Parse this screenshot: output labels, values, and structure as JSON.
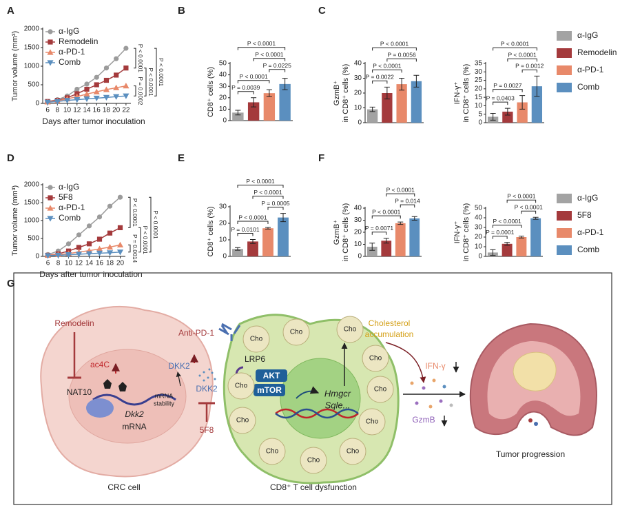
{
  "panel_labels": [
    "A",
    "B",
    "C",
    "D",
    "E",
    "F",
    "G"
  ],
  "legends": [
    {
      "items": [
        {
          "name": "α-IgG",
          "color": "#a3a3a3"
        },
        {
          "name": "Remodelin",
          "color": "#a43a3c"
        },
        {
          "name": "α-PD-1",
          "color": "#e8896a"
        },
        {
          "name": "Comb",
          "color": "#5b8fbf"
        }
      ]
    },
    {
      "items": [
        {
          "name": "α-IgG",
          "color": "#a3a3a3"
        },
        {
          "name": "5F8",
          "color": "#a43a3c"
        },
        {
          "name": "α-PD-1",
          "color": "#e8896a"
        },
        {
          "name": "Comb",
          "color": "#5b8fbf"
        }
      ]
    }
  ],
  "chart_data": [
    {
      "type": "line",
      "ylabel": "Tumor volume (mm³)",
      "xlabel": "Days after tumor inoculation",
      "x": [
        6,
        8,
        10,
        12,
        14,
        16,
        18,
        20,
        22
      ],
      "xlim": [
        5,
        23
      ],
      "xticks": [
        6,
        8,
        10,
        12,
        14,
        16,
        18,
        20,
        22
      ],
      "ylim": [
        0,
        2000
      ],
      "yticks": [
        0,
        500,
        1000,
        1500,
        2000
      ],
      "series": [
        {
          "name": "α-IgG",
          "color": "#9b9b9b",
          "marker": "circle",
          "values": [
            50,
            100,
            200,
            380,
            520,
            700,
            950,
            1200,
            1480
          ]
        },
        {
          "name": "Remodelin",
          "color": "#a43a3c",
          "marker": "square",
          "values": [
            50,
            80,
            150,
            260,
            380,
            500,
            620,
            760,
            950
          ]
        },
        {
          "name": "α-PD-1",
          "color": "#e8896a",
          "marker": "triangle-up",
          "values": [
            40,
            70,
            120,
            180,
            250,
            310,
            370,
            420,
            470
          ]
        },
        {
          "name": "Comb",
          "color": "#5b8fbf",
          "marker": "triangle-down",
          "values": [
            30,
            50,
            80,
            100,
            120,
            140,
            160,
            180,
            200
          ]
        }
      ],
      "comparisons": [
        {
          "pair": [
            0,
            1
          ],
          "label": "P < 0.0001"
        },
        {
          "pair": [
            2,
            3
          ],
          "label": "P = 0.0002"
        },
        {
          "pair": [
            1,
            3
          ],
          "label": "P < 0.0001"
        },
        {
          "pair": [
            0,
            3
          ],
          "label": "P < 0.0001"
        }
      ]
    },
    {
      "type": "bar",
      "ylabel": [
        "CD8⁺ cells (%)"
      ],
      "categories": [
        null,
        null,
        null,
        null
      ],
      "colors": [
        "#a3a3a3",
        "#a43a3c",
        "#e8896a",
        "#5b8fbf"
      ],
      "values": [
        7,
        16,
        24,
        32
      ],
      "errors": [
        2,
        4,
        3,
        5
      ],
      "ylim": [
        0,
        50
      ],
      "yticks": [
        0,
        10,
        20,
        30,
        40,
        50
      ],
      "comparisons": [
        {
          "pair": [
            0,
            1
          ],
          "label": "P = 0.0039"
        },
        {
          "pair": [
            0,
            2
          ],
          "label": "P < 0.0001"
        },
        {
          "pair": [
            2,
            3
          ],
          "label": "P = 0.0225"
        },
        {
          "pair": [
            1,
            3
          ],
          "label": "P < 0.0001"
        },
        {
          "pair": [
            0,
            3
          ],
          "label": "P < 0.0001"
        }
      ]
    },
    {
      "type": "bar",
      "ylabel": [
        "GzmB⁺",
        "in CD8⁺ cells (%)"
      ],
      "categories": [
        null,
        null,
        null,
        null
      ],
      "colors": [
        "#a3a3a3",
        "#a43a3c",
        "#e8896a",
        "#5b8fbf"
      ],
      "values": [
        9,
        20,
        26,
        28
      ],
      "errors": [
        1.5,
        4,
        4,
        4
      ],
      "ylim": [
        0,
        40
      ],
      "yticks": [
        0,
        10,
        20,
        30,
        40
      ],
      "comparisons": [
        {
          "pair": [
            0,
            1
          ],
          "label": "P = 0.0022"
        },
        {
          "pair": [
            0,
            2
          ],
          "label": "P < 0.0001"
        },
        {
          "pair": [
            1,
            3
          ],
          "label": "P = 0.0056"
        },
        {
          "pair": [
            0,
            3
          ],
          "label": "P < 0.0001"
        }
      ]
    },
    {
      "type": "bar",
      "ylabel": [
        "IFN-γ⁺",
        "in CD8⁺ cells (%)"
      ],
      "categories": [
        null,
        null,
        null,
        null
      ],
      "colors": [
        "#a3a3a3",
        "#a43a3c",
        "#e8896a",
        "#5b8fbf"
      ],
      "values": [
        3.5,
        6.5,
        12,
        21.5
      ],
      "errors": [
        2,
        2,
        4,
        6
      ],
      "ylim": [
        0,
        35
      ],
      "yticks": [
        0,
        5,
        10,
        15,
        20,
        25,
        30,
        35
      ],
      "comparisons": [
        {
          "pair": [
            0,
            1
          ],
          "label": "P = 0.0403"
        },
        {
          "pair": [
            0,
            2
          ],
          "label": "P = 0.0027"
        },
        {
          "pair": [
            2,
            3
          ],
          "label": "P = 0.0012"
        },
        {
          "pair": [
            1,
            3
          ],
          "label": "P < 0.0001"
        },
        {
          "pair": [
            0,
            3
          ],
          "label": "P < 0.0001"
        }
      ]
    },
    {
      "type": "line",
      "ylabel": "Tumor volume (mm³)",
      "xlabel": "Days after tumor inoculation",
      "x": [
        6,
        8,
        10,
        12,
        14,
        16,
        18,
        20
      ],
      "xlim": [
        5,
        21
      ],
      "xticks": [
        6,
        8,
        10,
        12,
        14,
        16,
        18,
        20
      ],
      "ylim": [
        0,
        2000
      ],
      "yticks": [
        0,
        500,
        1000,
        1500,
        2000
      ],
      "series": [
        {
          "name": "α-IgG",
          "color": "#9b9b9b",
          "marker": "circle",
          "values": [
            50,
            150,
            350,
            600,
            850,
            1100,
            1400,
            1650
          ]
        },
        {
          "name": "5F8",
          "color": "#a43a3c",
          "marker": "square",
          "values": [
            30,
            70,
            150,
            250,
            350,
            480,
            650,
            800
          ]
        },
        {
          "name": "α-PD-1",
          "color": "#e8896a",
          "marker": "triangle-up",
          "values": [
            30,
            50,
            80,
            120,
            160,
            210,
            260,
            320
          ]
        },
        {
          "name": "Comb",
          "color": "#5b8fbf",
          "marker": "triangle-down",
          "values": [
            20,
            30,
            45,
            60,
            75,
            90,
            100,
            120
          ]
        }
      ],
      "comparisons": [
        {
          "pair": [
            0,
            1
          ],
          "label": "P < 0.0001"
        },
        {
          "pair": [
            2,
            3
          ],
          "label": "P = 0.0014"
        },
        {
          "pair": [
            1,
            3
          ],
          "label": "P < 0.0001"
        },
        {
          "pair": [
            0,
            3
          ],
          "label": "P < 0.0001"
        }
      ]
    },
    {
      "type": "bar",
      "ylabel": [
        "CD8⁺ cells (%)"
      ],
      "categories": [
        null,
        null,
        null,
        null
      ],
      "colors": [
        "#a3a3a3",
        "#a43a3c",
        "#e8896a",
        "#5b8fbf"
      ],
      "values": [
        4.5,
        9,
        17,
        23.5
      ],
      "errors": [
        0.8,
        1.2,
        0.5,
        2.5
      ],
      "ylim": [
        0,
        30
      ],
      "yticks": [
        0,
        10,
        20,
        30
      ],
      "comparisons": [
        {
          "pair": [
            0,
            1
          ],
          "label": "P = 0.0101"
        },
        {
          "pair": [
            0,
            2
          ],
          "label": "P < 0.0001"
        },
        {
          "pair": [
            2,
            3
          ],
          "label": "P = 0.0005"
        },
        {
          "pair": [
            1,
            3
          ],
          "label": "P < 0.0001"
        },
        {
          "pair": [
            0,
            3
          ],
          "label": "P < 0.0001"
        }
      ]
    },
    {
      "type": "bar",
      "ylabel": [
        "GzmB⁺",
        "in CD8⁺ cells (%)"
      ],
      "categories": [
        null,
        null,
        null,
        null
      ],
      "colors": [
        "#a3a3a3",
        "#a43a3c",
        "#e8896a",
        "#5b8fbf"
      ],
      "values": [
        8,
        13,
        27.5,
        31.5
      ],
      "errors": [
        3,
        2,
        1,
        1.5
      ],
      "ylim": [
        0,
        40
      ],
      "yticks": [
        0,
        10,
        20,
        30,
        40
      ],
      "comparisons": [
        {
          "pair": [
            0,
            1
          ],
          "label": "P = 0.0071"
        },
        {
          "pair": [
            0,
            2
          ],
          "label": "P < 0.0001"
        },
        {
          "pair": [
            2,
            3
          ],
          "label": "P = 0.014"
        },
        {
          "pair": [
            1,
            3
          ],
          "label": "P < 0.0001"
        }
      ]
    },
    {
      "type": "bar",
      "ylabel": [
        "IFN-γ⁺",
        "in CD8⁺ cells (%)"
      ],
      "categories": [
        null,
        null,
        null,
        null
      ],
      "colors": [
        "#a3a3a3",
        "#a43a3c",
        "#e8896a",
        "#5b8fbf"
      ],
      "values": [
        4,
        13,
        20,
        39.5
      ],
      "errors": [
        3,
        1.5,
        1,
        1
      ],
      "ylim": [
        0,
        50
      ],
      "yticks": [
        0,
        10,
        20,
        30,
        40,
        50
      ],
      "comparisons": [
        {
          "pair": [
            0,
            1
          ],
          "label": "P = 0.0001"
        },
        {
          "pair": [
            0,
            2
          ],
          "label": "P < 0.0001"
        },
        {
          "pair": [
            2,
            3
          ],
          "label": "P < 0.0001"
        },
        {
          "pair": [
            1,
            3
          ],
          "label": "P < 0.0001"
        }
      ]
    }
  ],
  "diagram": {
    "inhibitor": "Remodelin",
    "enzyme": "NAT10",
    "mark": "ac4C",
    "gene": "Dkk2",
    "mrna": "mRNA",
    "stability": [
      "mRNA",
      "stability"
    ],
    "secreted": [
      "DKK2",
      "DKK2"
    ],
    "antibody": "5F8",
    "checkpoint": "Anti-PD-1",
    "receptor": "LRP6",
    "akt": "AKT",
    "mtor": "mTOR",
    "genes": [
      "Hmgcr",
      "Sqle..."
    ],
    "cho": [
      "Cho",
      "Cho",
      "Cho",
      "Cho",
      "Cho",
      "Cho",
      "Cho",
      "Cho",
      "Cho",
      "Cho",
      "Cho"
    ],
    "cholesterol": [
      "Cholesterol",
      "accumulation"
    ],
    "ifng": "IFN-γ",
    "gzmb": "GzmB",
    "outcome": "Tumor progression",
    "crc": "CRC cell",
    "tcell": "CD8⁺ T cell dysfunction"
  }
}
